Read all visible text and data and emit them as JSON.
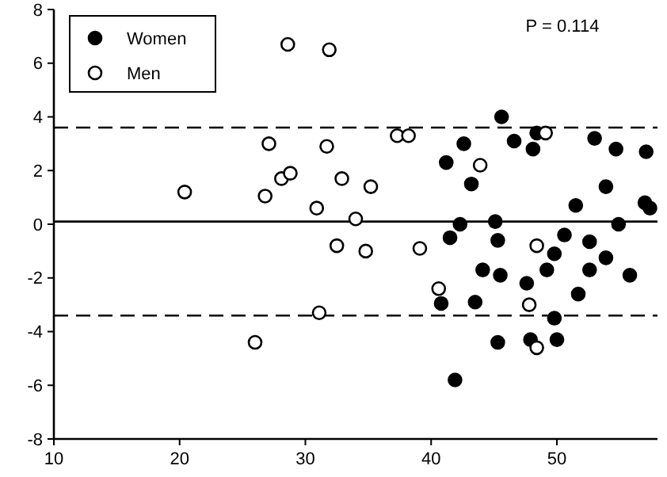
{
  "chart_data": {
    "type": "scatter",
    "xlim": [
      10,
      58
    ],
    "xticks": [
      10,
      20,
      30,
      40,
      50
    ],
    "ylim": [
      -8,
      8
    ],
    "yticks": [
      -8,
      -6,
      -4,
      -2,
      0,
      2,
      4,
      6,
      8
    ],
    "legend": "top left",
    "marker": "circle",
    "grid": false,
    "series": [
      {
        "name": "Women",
        "color": "#000000",
        "x": [
          45.6,
          46.6,
          48.1,
          48.4,
          53,
          54.7,
          57.1,
          42.6,
          41.2,
          43.2,
          53.9,
          51.5,
          57,
          57.4,
          54.9,
          45.1,
          42.3,
          41.5,
          45.3,
          50.6,
          52.6,
          53.9,
          49.8,
          44.1,
          45.5,
          49.2,
          52.6,
          55.8,
          47.6,
          51.7,
          43.5,
          40.8,
          49.8,
          50,
          45.3,
          47.9,
          41.9
        ],
        "values": [
          4.0,
          3.1,
          2.8,
          3.4,
          3.2,
          2.8,
          2.7,
          3.0,
          2.3,
          1.5,
          1.4,
          0.7,
          0.8,
          0.6,
          0.0,
          0.1,
          0.0,
          -0.5,
          -0.6,
          -0.4,
          -0.65,
          -1.25,
          -1.1,
          -1.7,
          -1.9,
          -1.7,
          -1.7,
          -1.9,
          -2.2,
          -2.6,
          -2.9,
          -2.95,
          -3.5,
          -4.3,
          -4.4,
          -4.3,
          -5.8
        ]
      },
      {
        "name": "Men",
        "color": "#ffffff",
        "x": [
          28.6,
          31.9,
          27.1,
          31.7,
          20.4,
          26.8,
          28.1,
          28.8,
          30.9,
          32.9,
          32.5,
          37.3,
          38.2,
          35.2,
          34,
          43.9,
          49.1,
          34.8,
          39.1,
          48.4,
          31.1,
          26,
          40.6,
          47.8,
          48.4
        ],
        "values": [
          6.7,
          6.5,
          3.0,
          2.9,
          1.2,
          1.05,
          1.7,
          1.9,
          0.6,
          1.7,
          -0.8,
          3.3,
          3.3,
          1.4,
          0.2,
          2.2,
          3.4,
          -1.0,
          -0.9,
          -0.8,
          -3.3,
          -4.4,
          -2.4,
          -3.0,
          -4.6
        ]
      }
    ],
    "ref_lines": [
      {
        "axis": "y",
        "value": 0.1,
        "line_style": "solid"
      },
      {
        "axis": "y",
        "value": 3.6,
        "line_style": "dashed"
      },
      {
        "axis": "y",
        "value": -3.4,
        "line_style": "dashed"
      }
    ],
    "annotations": [
      "P = 0.114"
    ]
  }
}
